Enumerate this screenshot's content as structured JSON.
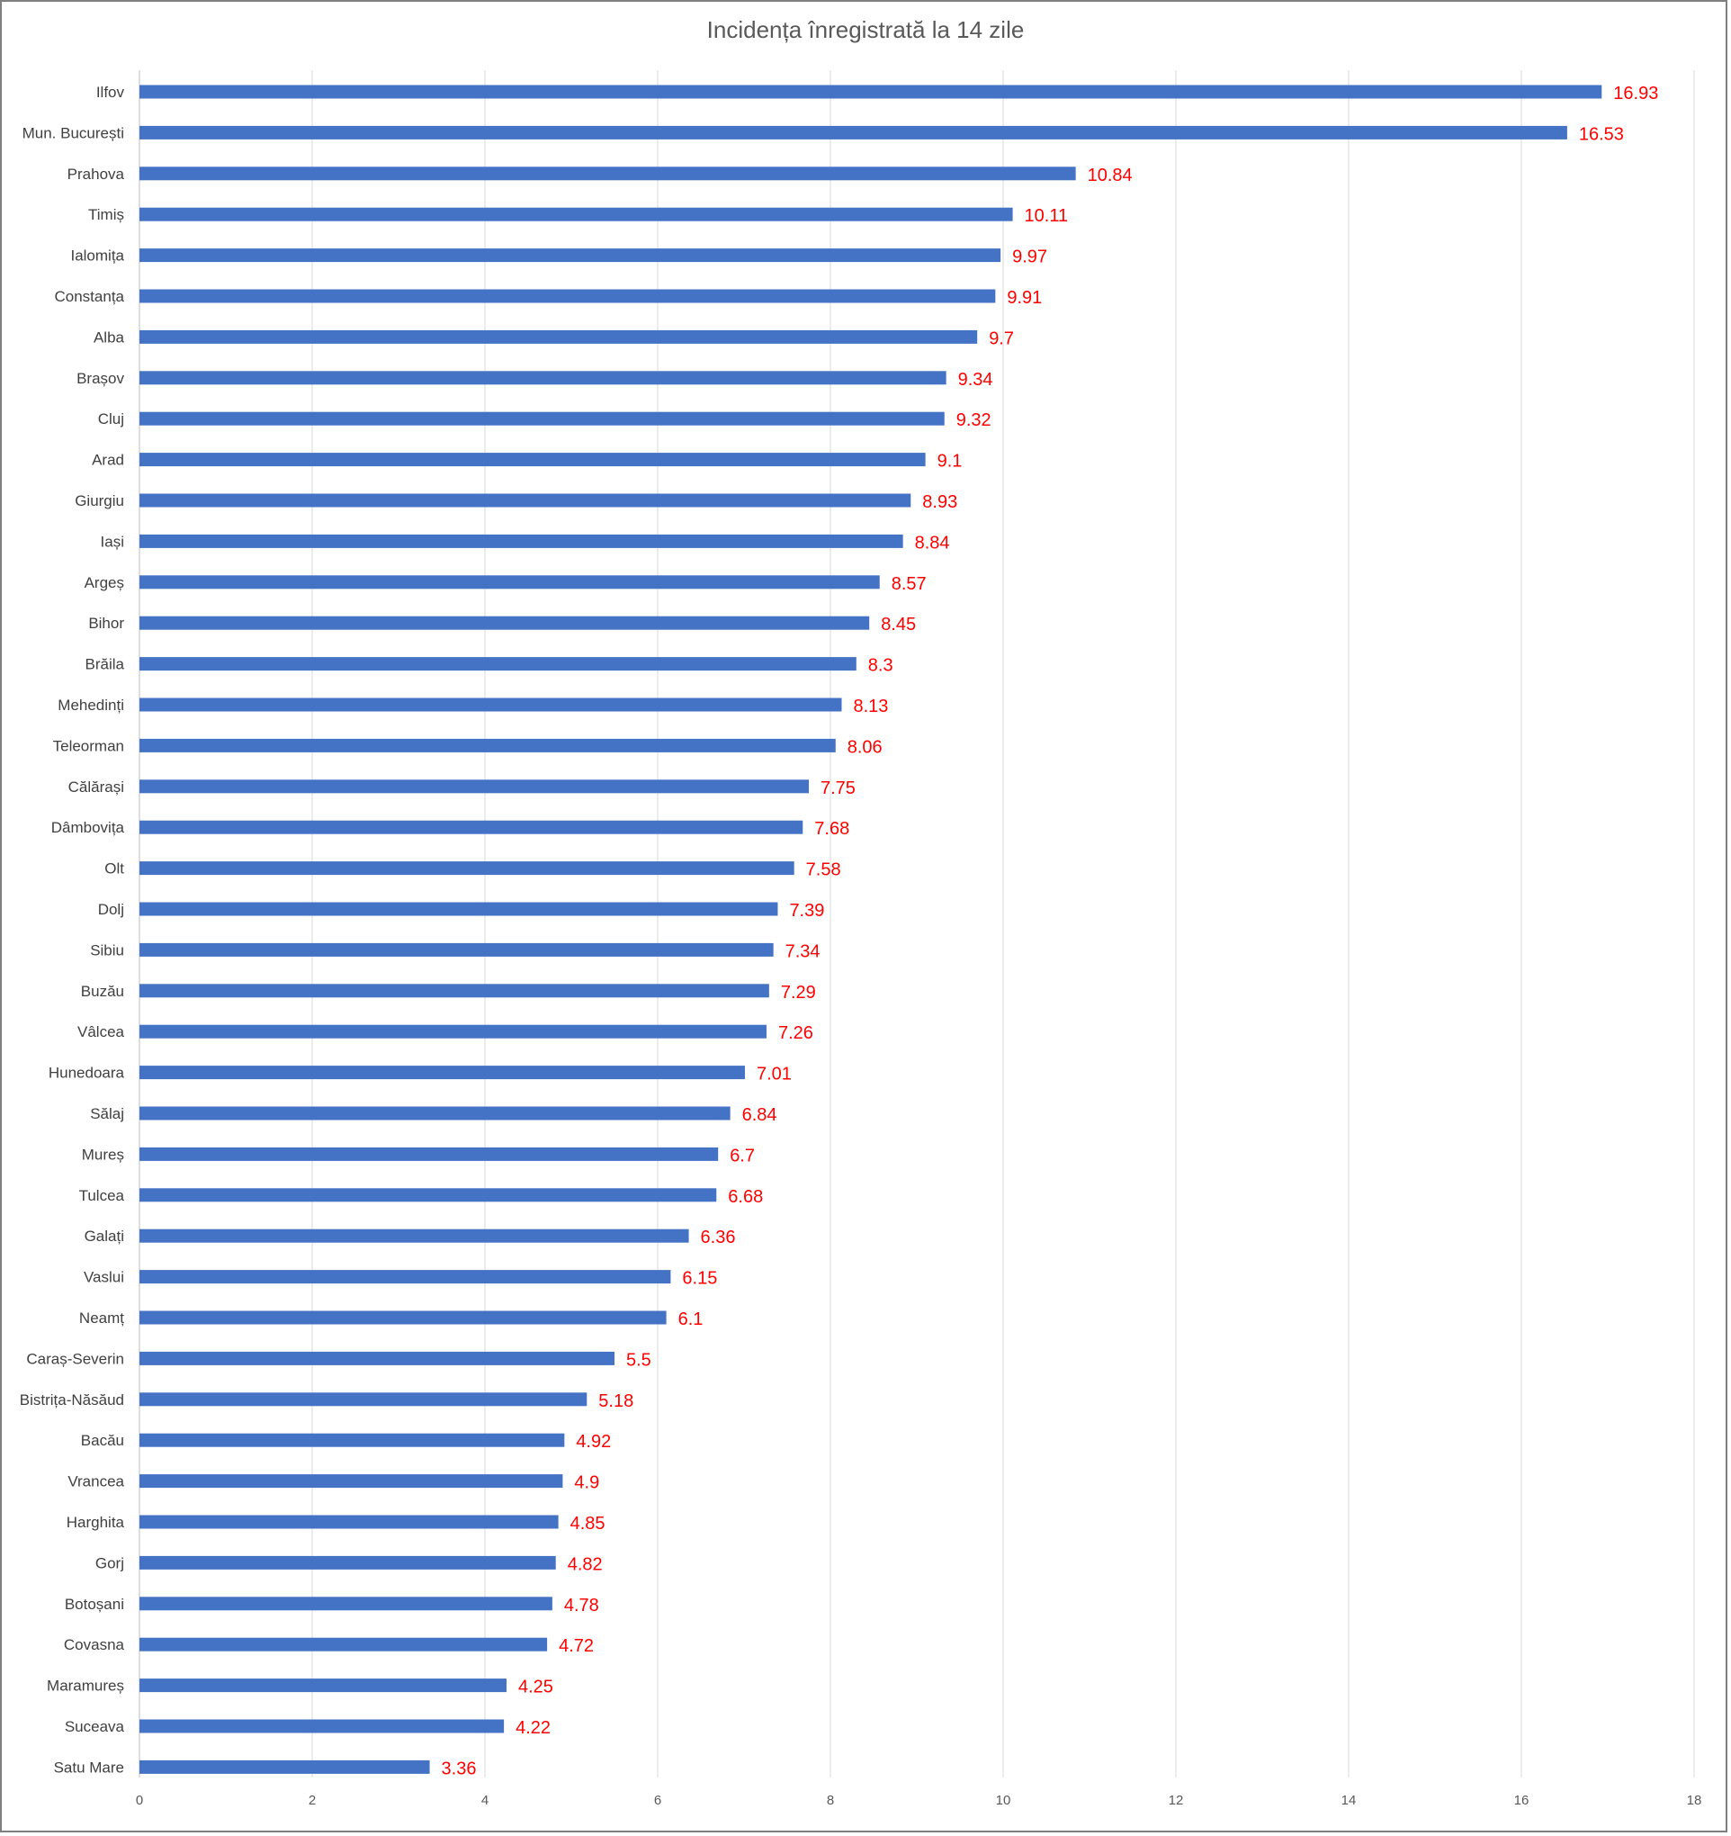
{
  "chart_data": {
    "type": "bar",
    "orientation": "horizontal",
    "title": "Incidența înregistrată la 14 zile",
    "xlim": [
      0,
      18
    ],
    "x_ticks": [
      "0",
      "2",
      "4",
      "6",
      "8",
      "10",
      "12",
      "14",
      "16",
      "18"
    ],
    "grid": "vertical",
    "bar_color": "#4472c4",
    "label_color": "#ff0000",
    "categories": [
      "Ilfov",
      "Mun. București",
      "Prahova",
      "Timiș",
      "Ialomița",
      "Constanța",
      "Alba",
      "Brașov",
      "Cluj",
      "Arad",
      "Giurgiu",
      "Iași",
      "Argeș",
      "Bihor",
      "Brăila",
      "Mehedinți",
      "Teleorman",
      "Călărași",
      "Dâmbovița",
      "Olt",
      "Dolj",
      "Sibiu",
      "Buzău",
      "Vâlcea",
      "Hunedoara",
      "Sălaj",
      "Mureș",
      "Tulcea",
      "Galați",
      "Vaslui",
      "Neamț",
      "Caraș-Severin",
      "Bistrița-Năsăud",
      "Bacău",
      "Vrancea",
      "Harghita",
      "Gorj",
      "Botoșani",
      "Covasna",
      "Maramureș",
      "Suceava",
      "Satu Mare"
    ],
    "values": [
      16.93,
      16.53,
      10.84,
      10.11,
      9.97,
      9.91,
      9.7,
      9.34,
      9.32,
      9.1,
      8.93,
      8.84,
      8.57,
      8.45,
      8.3,
      8.13,
      8.06,
      7.75,
      7.68,
      7.58,
      7.39,
      7.34,
      7.29,
      7.26,
      7.01,
      6.84,
      6.7,
      6.68,
      6.36,
      6.15,
      6.1,
      5.5,
      5.18,
      4.92,
      4.9,
      4.85,
      4.82,
      4.78,
      4.72,
      4.25,
      4.22,
      3.36
    ]
  }
}
